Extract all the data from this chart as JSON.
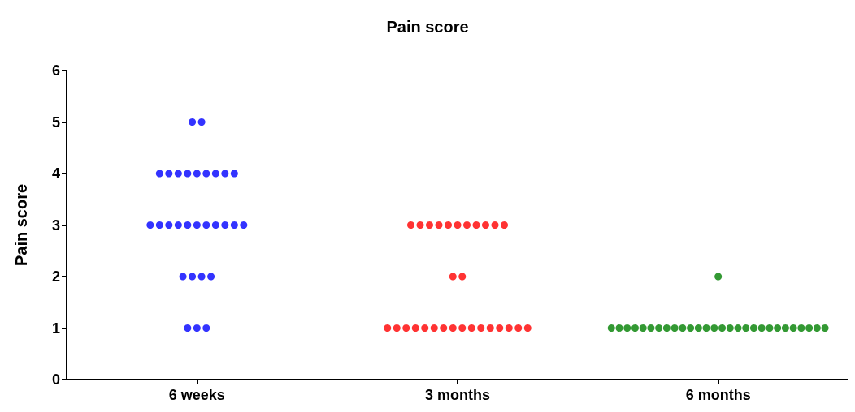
{
  "chart_data": {
    "type": "scatter",
    "title": "Pain score",
    "ylabel": "Pain score",
    "categories": [
      "6 weeks",
      "3 months",
      "6 months"
    ],
    "ylim": [
      0,
      6
    ],
    "yticks": [
      0,
      1,
      2,
      3,
      4,
      5,
      6
    ],
    "marker": "circle",
    "series": [
      {
        "color": "#0000ff",
        "x": [
          "6 weeks",
          "6 weeks",
          "6 weeks",
          "6 weeks",
          "6 weeks",
          "6 weeks",
          "6 weeks",
          "6 weeks",
          "6 weeks",
          "6 weeks",
          "6 weeks",
          "6 weeks",
          "6 weeks",
          "6 weeks",
          "6 weeks",
          "6 weeks",
          "6 weeks",
          "6 weeks",
          "6 weeks",
          "6 weeks",
          "6 weeks",
          "6 weeks",
          "6 weeks",
          "6 weeks",
          "6 weeks",
          "6 weeks",
          "6 weeks",
          "6 weeks",
          "6 weeks"
        ],
        "values": [
          5,
          5,
          4,
          4,
          4,
          4,
          4,
          4,
          4,
          4,
          4,
          3,
          3,
          3,
          3,
          3,
          3,
          3,
          3,
          3,
          3,
          3,
          2,
          2,
          2,
          2,
          1,
          1,
          1
        ]
      },
      {
        "color": "#ff0000",
        "x": [
          "3 months",
          "3 months",
          "3 months",
          "3 months",
          "3 months",
          "3 months",
          "3 months",
          "3 months",
          "3 months",
          "3 months",
          "3 months",
          "3 months",
          "3 months",
          "3 months",
          "3 months",
          "3 months",
          "3 months",
          "3 months",
          "3 months",
          "3 months",
          "3 months",
          "3 months",
          "3 months",
          "3 months",
          "3 months",
          "3 months",
          "3 months",
          "3 months",
          "3 months"
        ],
        "values": [
          3,
          3,
          3,
          3,
          3,
          3,
          3,
          3,
          3,
          3,
          3,
          2,
          2,
          1,
          1,
          1,
          1,
          1,
          1,
          1,
          1,
          1,
          1,
          1,
          1,
          1,
          1,
          1,
          1
        ]
      },
      {
        "color": "#008000",
        "x": [
          "6 months",
          "6 months",
          "6 months",
          "6 months",
          "6 months",
          "6 months",
          "6 months",
          "6 months",
          "6 months",
          "6 months",
          "6 months",
          "6 months",
          "6 months",
          "6 months",
          "6 months",
          "6 months",
          "6 months",
          "6 months",
          "6 months",
          "6 months",
          "6 months",
          "6 months",
          "6 months",
          "6 months",
          "6 months",
          "6 months",
          "6 months",
          "6 months",
          "6 months"
        ],
        "values": [
          2,
          1,
          1,
          1,
          1,
          1,
          1,
          1,
          1,
          1,
          1,
          1,
          1,
          1,
          1,
          1,
          1,
          1,
          1,
          1,
          1,
          1,
          1,
          1,
          1,
          1,
          1,
          1,
          1
        ]
      }
    ]
  }
}
